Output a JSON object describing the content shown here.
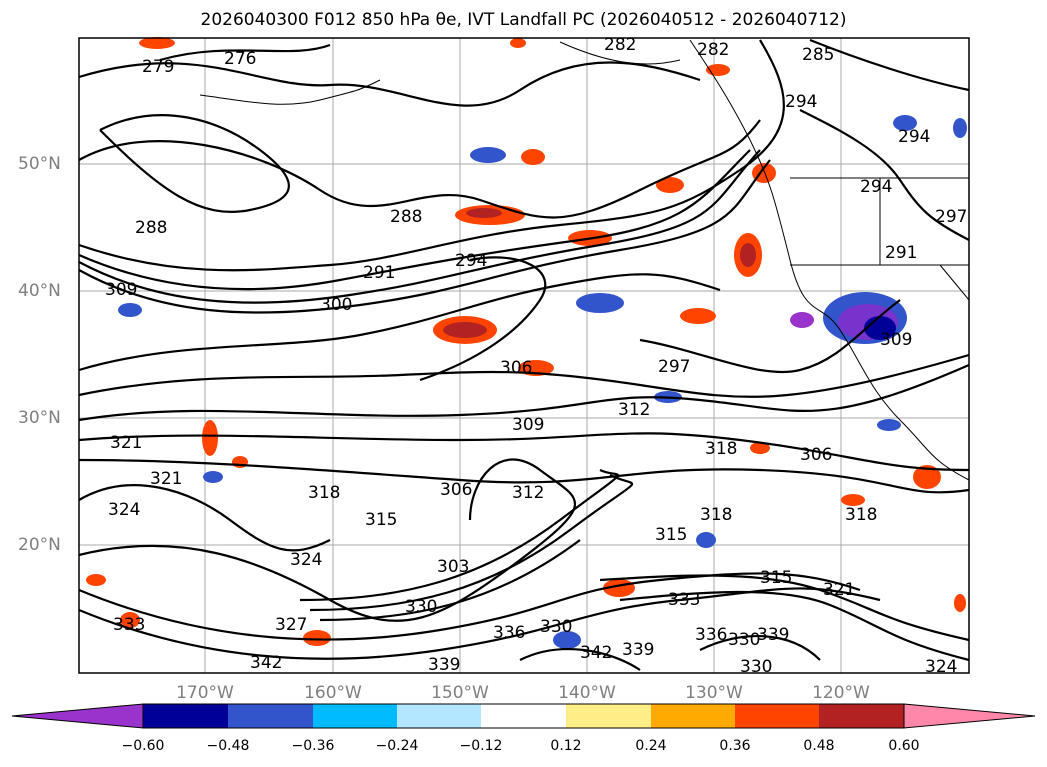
{
  "title": "2026040300 F012 850 hPa θe, IVT Landfall PC (2026040512 - 2026040712)",
  "lat_labels": [
    "50°N",
    "40°N",
    "30°N",
    "20°N"
  ],
  "lon_labels": [
    "170°W",
    "160°W",
    "150°W",
    "140°W",
    "130°W",
    "120°W"
  ],
  "colorbar": {
    "ticks": [
      "−0.60",
      "−0.48",
      "−0.36",
      "−0.24",
      "−0.12",
      "0.12",
      "0.24",
      "0.36",
      "0.48",
      "0.60"
    ],
    "colors": [
      "#9933cc",
      "#000099",
      "#3355cc",
      "#00bbff",
      "#b3e6ff",
      "#ffffff",
      "#ffee88",
      "#ffaa00",
      "#ff4400",
      "#b22222",
      "#ff88aa"
    ],
    "extend": "both"
  },
  "contour_labels": [
    "279",
    "276",
    "282",
    "282",
    "285",
    "294",
    "294",
    "288",
    "288",
    "291",
    "294",
    "291",
    "294",
    "297",
    "300",
    "309",
    "309",
    "306",
    "297",
    "312",
    "309",
    "318",
    "306",
    "321",
    "321",
    "318",
    "306",
    "312",
    "324",
    "315",
    "318",
    "315",
    "315",
    "321",
    "318",
    "327",
    "324",
    "303",
    "330",
    "336",
    "333",
    "330",
    "342",
    "339",
    "336",
    "339",
    "330",
    "333",
    "342",
    "339",
    "330",
    "324"
  ],
  "chart_data": {
    "type": "map",
    "variables": [
      "850 hPa θe",
      "IVT Landfall PC"
    ],
    "init": "2026040300",
    "forecast_hour": "F012",
    "valid_window": "2026040512 - 2026040712",
    "lat_range": [
      10,
      60
    ],
    "lon_range": [
      -180,
      -110
    ],
    "grid": true
  }
}
